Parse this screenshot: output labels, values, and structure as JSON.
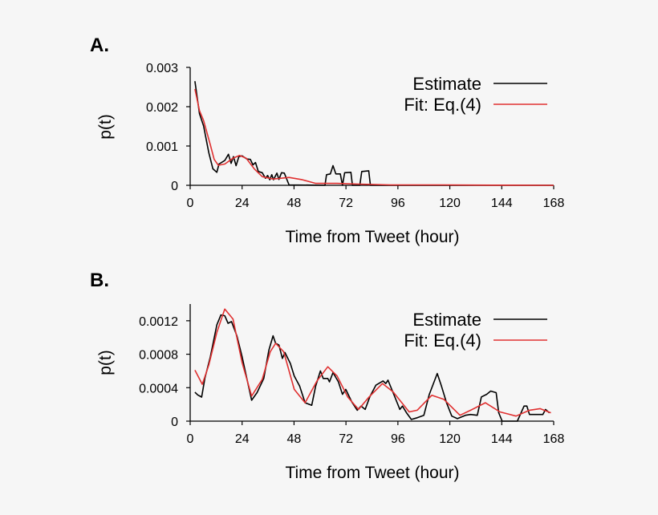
{
  "chart_data": [
    {
      "panel_label": "A.",
      "type": "line",
      "xlabel": "Time from Tweet (hour)",
      "ylabel": "p(t)",
      "xlim": [
        0,
        168
      ],
      "ylim": [
        0,
        0.003
      ],
      "xticks": [
        0,
        24,
        48,
        72,
        96,
        120,
        144,
        168
      ],
      "xtick_labels": [
        "0",
        "24",
        "48",
        "72",
        "96",
        "120",
        "144",
        "168"
      ],
      "yticks": [
        0,
        0.001,
        0.002,
        0.003
      ],
      "ytick_labels": [
        "0",
        "0.001",
        "0.002",
        "0.003"
      ],
      "grid": false,
      "legend_position": "top-right",
      "series": [
        {
          "name": "Estimate",
          "color": "#000000",
          "x": [
            2.2,
            4.3,
            6.2,
            8.6,
            10.5,
            12.3,
            13.3,
            16,
            17.7,
            18.9,
            20,
            21.2,
            22.5,
            24,
            26.2,
            27.8,
            29,
            30.2,
            31.5,
            33.3,
            34.8,
            35.8,
            36.8,
            37.7,
            38.5,
            40.1,
            41,
            42.2,
            43.5,
            45.7,
            62.3,
            63,
            64.8,
            66,
            67.3,
            69.4,
            70.4,
            71.4,
            74.3,
            75,
            78.4,
            79.3,
            82.5,
            83.3,
            168
          ],
          "y": [
            0.00265,
            0.00182,
            0.00151,
            0.00083,
            0.00042,
            0.00033,
            0.00054,
            0.00063,
            0.00079,
            0.00056,
            0.00073,
            0.0005,
            0.00073,
            0.00075,
            0.00067,
            0.00066,
            0.00052,
            0.00058,
            0.00035,
            0.00032,
            0.00018,
            0.00025,
            0.00014,
            0.00027,
            0.00014,
            0.00031,
            0.00015,
            0.00032,
            0.00031,
            1e-05,
            0,
            0.00027,
            0.00029,
            0.0005,
            0.00029,
            0.00029,
            0,
            0.00032,
            0.00033,
            0,
            0,
            0.00035,
            0.00037,
            0,
            0
          ]
        },
        {
          "name": "Fit: Eq.(4)",
          "color": "#e03030",
          "x": [
            2.2,
            4.3,
            6.2,
            9.3,
            11.1,
            13,
            16,
            19.8,
            22.8,
            25.9,
            29.6,
            33.3,
            38.3,
            45.7,
            51.9,
            58,
            67.9,
            77.8,
            92.6,
            117,
            140,
            168
          ],
          "y": [
            0.00245,
            0.0019,
            0.00165,
            0.00103,
            0.00066,
            0.00051,
            0.00054,
            0.00069,
            0.00076,
            0.00069,
            0.00042,
            0.00022,
            0.00016,
            0.0002,
            0.00014,
            5e-05,
            5e-05,
            3e-05,
            1e-05,
            1e-05,
            5e-06,
            0
          ]
        }
      ]
    },
    {
      "panel_label": "B.",
      "type": "line",
      "xlabel": "Time from Tweet (hour)",
      "ylabel": "p(t)",
      "xlim": [
        0,
        168
      ],
      "ylim": [
        0,
        0.0014
      ],
      "xticks": [
        0,
        24,
        48,
        72,
        96,
        120,
        144,
        168
      ],
      "xtick_labels": [
        "0",
        "24",
        "48",
        "72",
        "96",
        "120",
        "144",
        "168"
      ],
      "yticks": [
        0,
        0.0004,
        0.0008,
        0.0012
      ],
      "ytick_labels": [
        "0",
        "0.0004",
        "0.0008",
        "0.0012"
      ],
      "grid": false,
      "legend_position": "top-right",
      "series": [
        {
          "name": "Estimate",
          "color": "#000000",
          "x": [
            2.2,
            3.5,
            5.3,
            6.8,
            9.3,
            12.3,
            14.2,
            16,
            17.5,
            19.1,
            21.6,
            24,
            26.2,
            28.4,
            30.9,
            34,
            36.4,
            38.3,
            39.5,
            41,
            42.6,
            43.8,
            46.3,
            48.1,
            50.6,
            53.1,
            56.2,
            58,
            60.2,
            61.5,
            63.6,
            64.4,
            66,
            68.5,
            70.4,
            71.9,
            74.7,
            77.2,
            79,
            80.9,
            83,
            85.8,
            89.1,
            90.4,
            91.4,
            93.8,
            96.9,
            98.1,
            100,
            102.2,
            104.9,
            108,
            110.5,
            114.2,
            116,
            118.5,
            120.9,
            123.5,
            127.2,
            129.6,
            132.7,
            134.6,
            137,
            138.9,
            141.4,
            142.6,
            144.2,
            151.2,
            154.3,
            155.6,
            156.8,
            163,
            164.2,
            166
          ],
          "y": [
            0.000346,
            0.000314,
            0.000288,
            0.000512,
            0.000768,
            0.00115,
            0.00127,
            0.00126,
            0.00117,
            0.00119,
            0.00102,
            0.00077,
            0.00051,
            0.00025,
            0.00034,
            0.00051,
            0.00085,
            0.00102,
            0.00093,
            0.00091,
            0.00075,
            0.00082,
            0.00069,
            0.00054,
            0.00042,
            0.00022,
            0.00019,
            0.00042,
            0.0006,
            0.00051,
            0.00051,
            0.00047,
            0.00058,
            0.00047,
            0.00032,
            0.00038,
            0.00023,
            0.00013,
            0.00018,
            0.00014,
            0.00029,
            0.00043,
            0.00048,
            0.00045,
            0.00049,
            0.00034,
            0.00014,
            0.00018,
            0.0001,
            2e-05,
            4e-05,
            7e-05,
            0.00032,
            0.00057,
            0.00043,
            0.00022,
            6e-05,
            3e-05,
            7e-05,
            8e-05,
            7e-05,
            0.00029,
            0.00032,
            0.00036,
            0.00034,
            0.0001,
            0,
            0,
            0.00018,
            0.00018,
            8e-05,
            8e-05,
            0.00014,
            0.0001
          ]
        },
        {
          "name": "Fit: Eq.(4)",
          "color": "#e03030",
          "x": [
            2.2,
            5.6,
            8.6,
            12.3,
            16,
            19.8,
            24,
            28.4,
            33.3,
            37,
            39.5,
            43.2,
            48.1,
            53.1,
            58.6,
            63.6,
            67.9,
            72.8,
            77.8,
            82.7,
            88.9,
            93.8,
            101.2,
            104.9,
            111.7,
            117.3,
            124.7,
            129.6,
            136.4,
            143.2,
            150.6,
            156.8,
            161.7,
            166.7
          ],
          "y": [
            0.00061,
            0.00044,
            0.00067,
            0.00106,
            0.00134,
            0.00122,
            0.0007,
            0.0003,
            0.0005,
            0.00083,
            0.00093,
            0.00083,
            0.00038,
            0.00022,
            0.00048,
            0.00065,
            0.00054,
            0.00029,
            0.00014,
            0.00029,
            0.00045,
            0.00035,
            0.00011,
            0.00013,
            0.00031,
            0.00026,
            7e-05,
            0.00013,
            0.00022,
            0.00011,
            6e-05,
            0.00013,
            0.00015,
            0.0001
          ]
        }
      ]
    }
  ]
}
